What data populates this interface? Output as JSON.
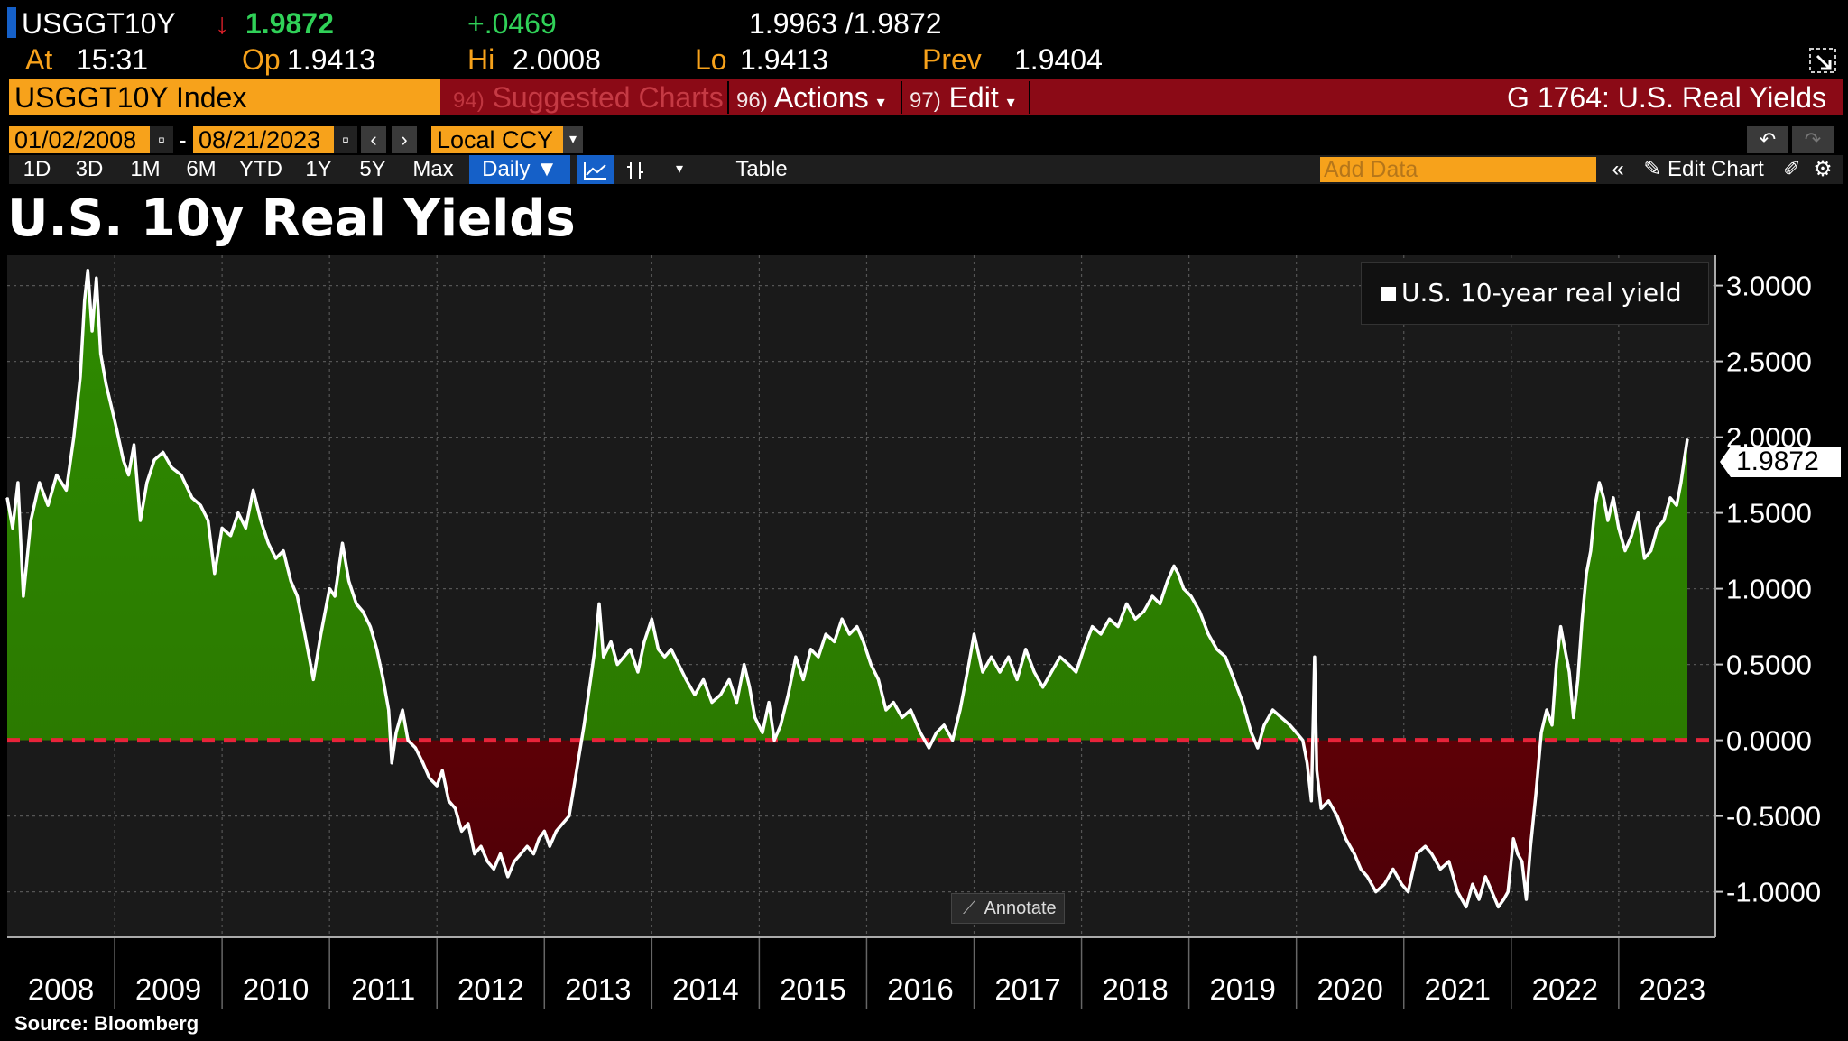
{
  "quote": {
    "ticker": "USGGT10Y",
    "arrow": "↓",
    "last": "1.9872",
    "change": "+.0469",
    "bid_ask": "1.9963 /1.9872",
    "at_label": "At",
    "time": "15:31",
    "open_label": "Op",
    "open": "1.9413",
    "high_label": "Hi",
    "high": "2.0008",
    "low_label": "Lo",
    "low": "1.9413",
    "prev_label": "Prev",
    "prev": "1.9404",
    "colors": {
      "label": "#f7a21b",
      "down": "#e0202a",
      "up": "#30d158"
    }
  },
  "command_bar": {
    "security": "USGGT10Y Index",
    "suggested_num": "94)",
    "suggested": "Suggested Charts",
    "actions_num": "96)",
    "actions": "Actions",
    "edit_num": "97)",
    "edit": "Edit",
    "page_title": "G 1764: U.S. Real Yields"
  },
  "controls": {
    "start_date": "01/02/2008",
    "end_date": "08/21/2023",
    "date_dash": "-",
    "currency": "Local CCY",
    "periods": [
      "1D",
      "3D",
      "1M",
      "6M",
      "YTD",
      "1Y",
      "5Y",
      "Max"
    ],
    "frequency": "Daily",
    "table": "Table",
    "add_data_placeholder": "Add Data",
    "edit_chart": "Edit Chart"
  },
  "chart_title": "U.S. 10y Real Yields",
  "source": "Source: Bloomberg",
  "annotate": "Annotate",
  "chart_data": {
    "type": "area",
    "legend": "U.S. 10-year real yield",
    "legend_position": "top-right",
    "last_value_label": "1.9872",
    "xlim": [
      2008.0,
      2023.9
    ],
    "ylim": [
      -1.3,
      3.2
    ],
    "y_ticks": [
      3.0,
      2.5,
      2.0,
      1.5,
      1.0,
      0.5,
      0.0,
      -0.5,
      -1.0
    ],
    "y_tick_labels": [
      "3.0000",
      "2.5000",
      "2.0000",
      "1.5000",
      "1.0000",
      "0.5000",
      "0.0000",
      "-0.5000",
      "-1.0000"
    ],
    "x_tick_labels": [
      "2008",
      "2009",
      "2010",
      "2011",
      "2012",
      "2013",
      "2014",
      "2015",
      "2016",
      "2017",
      "2018",
      "2019",
      "2020",
      "2021",
      "2022",
      "2023"
    ],
    "grid": true,
    "zero_line": {
      "value": 0,
      "color": "#e8243a",
      "style": "dashed"
    },
    "colors": {
      "positive": "#2e8b00",
      "negative": "#8b0000",
      "line": "#ffffff",
      "positive_dark": "#2a7400",
      "negative_dark": "#4d0008"
    },
    "series": [
      {
        "name": "U.S. 10-year real yield",
        "points": [
          [
            2008.0,
            1.6
          ],
          [
            2008.05,
            1.4
          ],
          [
            2008.1,
            1.7
          ],
          [
            2008.15,
            0.95
          ],
          [
            2008.22,
            1.45
          ],
          [
            2008.3,
            1.7
          ],
          [
            2008.38,
            1.55
          ],
          [
            2008.46,
            1.75
          ],
          [
            2008.55,
            1.65
          ],
          [
            2008.62,
            2.0
          ],
          [
            2008.68,
            2.4
          ],
          [
            2008.72,
            2.9
          ],
          [
            2008.75,
            3.1
          ],
          [
            2008.79,
            2.7
          ],
          [
            2008.83,
            3.05
          ],
          [
            2008.87,
            2.55
          ],
          [
            2008.92,
            2.35
          ],
          [
            2008.97,
            2.2
          ],
          [
            2009.02,
            2.05
          ],
          [
            2009.08,
            1.85
          ],
          [
            2009.13,
            1.75
          ],
          [
            2009.18,
            1.95
          ],
          [
            2009.24,
            1.45
          ],
          [
            2009.3,
            1.7
          ],
          [
            2009.37,
            1.85
          ],
          [
            2009.45,
            1.9
          ],
          [
            2009.53,
            1.8
          ],
          [
            2009.62,
            1.75
          ],
          [
            2009.72,
            1.6
          ],
          [
            2009.8,
            1.55
          ],
          [
            2009.87,
            1.45
          ],
          [
            2009.93,
            1.1
          ],
          [
            2010.0,
            1.4
          ],
          [
            2010.08,
            1.35
          ],
          [
            2010.15,
            1.5
          ],
          [
            2010.22,
            1.4
          ],
          [
            2010.29,
            1.65
          ],
          [
            2010.36,
            1.45
          ],
          [
            2010.43,
            1.3
          ],
          [
            2010.5,
            1.2
          ],
          [
            2010.57,
            1.25
          ],
          [
            2010.64,
            1.05
          ],
          [
            2010.7,
            0.95
          ],
          [
            2010.77,
            0.7
          ],
          [
            2010.85,
            0.4
          ],
          [
            2010.92,
            0.7
          ],
          [
            2011.0,
            1.0
          ],
          [
            2011.05,
            0.95
          ],
          [
            2011.12,
            1.3
          ],
          [
            2011.18,
            1.05
          ],
          [
            2011.25,
            0.9
          ],
          [
            2011.31,
            0.85
          ],
          [
            2011.38,
            0.75
          ],
          [
            2011.44,
            0.6
          ],
          [
            2011.5,
            0.4
          ],
          [
            2011.55,
            0.2
          ],
          [
            2011.58,
            -0.15
          ],
          [
            2011.62,
            0.05
          ],
          [
            2011.68,
            0.2
          ],
          [
            2011.73,
            0.0
          ],
          [
            2011.8,
            -0.05
          ],
          [
            2011.87,
            -0.15
          ],
          [
            2011.93,
            -0.25
          ],
          [
            2012.0,
            -0.3
          ],
          [
            2012.05,
            -0.2
          ],
          [
            2012.11,
            -0.4
          ],
          [
            2012.17,
            -0.45
          ],
          [
            2012.23,
            -0.6
          ],
          [
            2012.29,
            -0.55
          ],
          [
            2012.35,
            -0.75
          ],
          [
            2012.41,
            -0.7
          ],
          [
            2012.47,
            -0.8
          ],
          [
            2012.53,
            -0.85
          ],
          [
            2012.59,
            -0.75
          ],
          [
            2012.66,
            -0.9
          ],
          [
            2012.72,
            -0.8
          ],
          [
            2012.78,
            -0.75
          ],
          [
            2012.84,
            -0.7
          ],
          [
            2012.9,
            -0.75
          ],
          [
            2012.95,
            -0.65
          ],
          [
            2013.0,
            -0.6
          ],
          [
            2013.05,
            -0.7
          ],
          [
            2013.11,
            -0.6
          ],
          [
            2013.17,
            -0.55
          ],
          [
            2013.23,
            -0.5
          ],
          [
            2013.3,
            -0.2
          ],
          [
            2013.37,
            0.1
          ],
          [
            2013.43,
            0.4
          ],
          [
            2013.47,
            0.6
          ],
          [
            2013.51,
            0.9
          ],
          [
            2013.55,
            0.55
          ],
          [
            2013.62,
            0.65
          ],
          [
            2013.68,
            0.5
          ],
          [
            2013.74,
            0.55
          ],
          [
            2013.8,
            0.6
          ],
          [
            2013.87,
            0.45
          ],
          [
            2013.93,
            0.65
          ],
          [
            2014.0,
            0.8
          ],
          [
            2014.06,
            0.6
          ],
          [
            2014.12,
            0.55
          ],
          [
            2014.18,
            0.6
          ],
          [
            2014.25,
            0.5
          ],
          [
            2014.32,
            0.4
          ],
          [
            2014.4,
            0.3
          ],
          [
            2014.48,
            0.4
          ],
          [
            2014.56,
            0.25
          ],
          [
            2014.64,
            0.3
          ],
          [
            2014.72,
            0.4
          ],
          [
            2014.79,
            0.25
          ],
          [
            2014.86,
            0.5
          ],
          [
            2014.91,
            0.35
          ],
          [
            2014.96,
            0.15
          ],
          [
            2015.03,
            0.05
          ],
          [
            2015.09,
            0.25
          ],
          [
            2015.14,
            0.0
          ],
          [
            2015.2,
            0.1
          ],
          [
            2015.27,
            0.3
          ],
          [
            2015.34,
            0.55
          ],
          [
            2015.41,
            0.4
          ],
          [
            2015.48,
            0.6
          ],
          [
            2015.55,
            0.55
          ],
          [
            2015.62,
            0.7
          ],
          [
            2015.7,
            0.65
          ],
          [
            2015.77,
            0.8
          ],
          [
            2015.84,
            0.7
          ],
          [
            2015.91,
            0.75
          ],
          [
            2015.97,
            0.65
          ],
          [
            2016.04,
            0.5
          ],
          [
            2016.11,
            0.4
          ],
          [
            2016.18,
            0.2
          ],
          [
            2016.25,
            0.25
          ],
          [
            2016.33,
            0.15
          ],
          [
            2016.41,
            0.2
          ],
          [
            2016.5,
            0.05
          ],
          [
            2016.58,
            -0.05
          ],
          [
            2016.65,
            0.05
          ],
          [
            2016.72,
            0.1
          ],
          [
            2016.8,
            0.0
          ],
          [
            2016.87,
            0.2
          ],
          [
            2016.95,
            0.5
          ],
          [
            2017.0,
            0.7
          ],
          [
            2017.08,
            0.45
          ],
          [
            2017.16,
            0.55
          ],
          [
            2017.24,
            0.45
          ],
          [
            2017.32,
            0.55
          ],
          [
            2017.4,
            0.4
          ],
          [
            2017.48,
            0.6
          ],
          [
            2017.56,
            0.45
          ],
          [
            2017.64,
            0.35
          ],
          [
            2017.72,
            0.45
          ],
          [
            2017.8,
            0.55
          ],
          [
            2017.88,
            0.5
          ],
          [
            2017.95,
            0.45
          ],
          [
            2018.02,
            0.6
          ],
          [
            2018.1,
            0.75
          ],
          [
            2018.18,
            0.7
          ],
          [
            2018.26,
            0.8
          ],
          [
            2018.34,
            0.75
          ],
          [
            2018.42,
            0.9
          ],
          [
            2018.5,
            0.8
          ],
          [
            2018.58,
            0.85
          ],
          [
            2018.66,
            0.95
          ],
          [
            2018.73,
            0.9
          ],
          [
            2018.8,
            1.05
          ],
          [
            2018.86,
            1.15
          ],
          [
            2018.9,
            1.1
          ],
          [
            2018.95,
            1.0
          ],
          [
            2019.02,
            0.95
          ],
          [
            2019.1,
            0.85
          ],
          [
            2019.18,
            0.7
          ],
          [
            2019.26,
            0.6
          ],
          [
            2019.34,
            0.55
          ],
          [
            2019.42,
            0.4
          ],
          [
            2019.5,
            0.25
          ],
          [
            2019.58,
            0.05
          ],
          [
            2019.64,
            -0.05
          ],
          [
            2019.7,
            0.1
          ],
          [
            2019.78,
            0.2
          ],
          [
            2019.86,
            0.15
          ],
          [
            2019.94,
            0.1
          ],
          [
            2020.0,
            0.05
          ],
          [
            2020.06,
            0.0
          ],
          [
            2020.1,
            -0.15
          ],
          [
            2020.14,
            -0.4
          ],
          [
            2020.17,
            0.55
          ],
          [
            2020.19,
            -0.2
          ],
          [
            2020.23,
            -0.45
          ],
          [
            2020.3,
            -0.4
          ],
          [
            2020.38,
            -0.5
          ],
          [
            2020.46,
            -0.65
          ],
          [
            2020.54,
            -0.75
          ],
          [
            2020.6,
            -0.85
          ],
          [
            2020.66,
            -0.9
          ],
          [
            2020.74,
            -1.0
          ],
          [
            2020.82,
            -0.95
          ],
          [
            2020.9,
            -0.85
          ],
          [
            2020.98,
            -0.95
          ],
          [
            2021.04,
            -1.0
          ],
          [
            2021.12,
            -0.75
          ],
          [
            2021.2,
            -0.7
          ],
          [
            2021.26,
            -0.75
          ],
          [
            2021.34,
            -0.85
          ],
          [
            2021.42,
            -0.8
          ],
          [
            2021.5,
            -1.0
          ],
          [
            2021.58,
            -1.1
          ],
          [
            2021.64,
            -0.95
          ],
          [
            2021.7,
            -1.05
          ],
          [
            2021.76,
            -0.9
          ],
          [
            2021.82,
            -1.0
          ],
          [
            2021.88,
            -1.1
          ],
          [
            2021.93,
            -1.05
          ],
          [
            2021.97,
            -1.0
          ],
          [
            2022.02,
            -0.65
          ],
          [
            2022.06,
            -0.75
          ],
          [
            2022.1,
            -0.8
          ],
          [
            2022.14,
            -1.05
          ],
          [
            2022.18,
            -0.7
          ],
          [
            2022.23,
            -0.35
          ],
          [
            2022.28,
            0.05
          ],
          [
            2022.33,
            0.2
          ],
          [
            2022.38,
            0.1
          ],
          [
            2022.42,
            0.5
          ],
          [
            2022.46,
            0.75
          ],
          [
            2022.5,
            0.6
          ],
          [
            2022.54,
            0.45
          ],
          [
            2022.58,
            0.15
          ],
          [
            2022.62,
            0.4
          ],
          [
            2022.66,
            0.8
          ],
          [
            2022.7,
            1.1
          ],
          [
            2022.74,
            1.25
          ],
          [
            2022.78,
            1.55
          ],
          [
            2022.82,
            1.7
          ],
          [
            2022.86,
            1.6
          ],
          [
            2022.9,
            1.45
          ],
          [
            2022.95,
            1.6
          ],
          [
            2023.0,
            1.4
          ],
          [
            2023.06,
            1.25
          ],
          [
            2023.12,
            1.35
          ],
          [
            2023.18,
            1.5
          ],
          [
            2023.24,
            1.2
          ],
          [
            2023.3,
            1.25
          ],
          [
            2023.36,
            1.4
          ],
          [
            2023.42,
            1.45
          ],
          [
            2023.48,
            1.6
          ],
          [
            2023.54,
            1.55
          ],
          [
            2023.58,
            1.7
          ],
          [
            2023.61,
            1.85
          ],
          [
            2023.64,
            1.9872
          ]
        ]
      }
    ]
  }
}
